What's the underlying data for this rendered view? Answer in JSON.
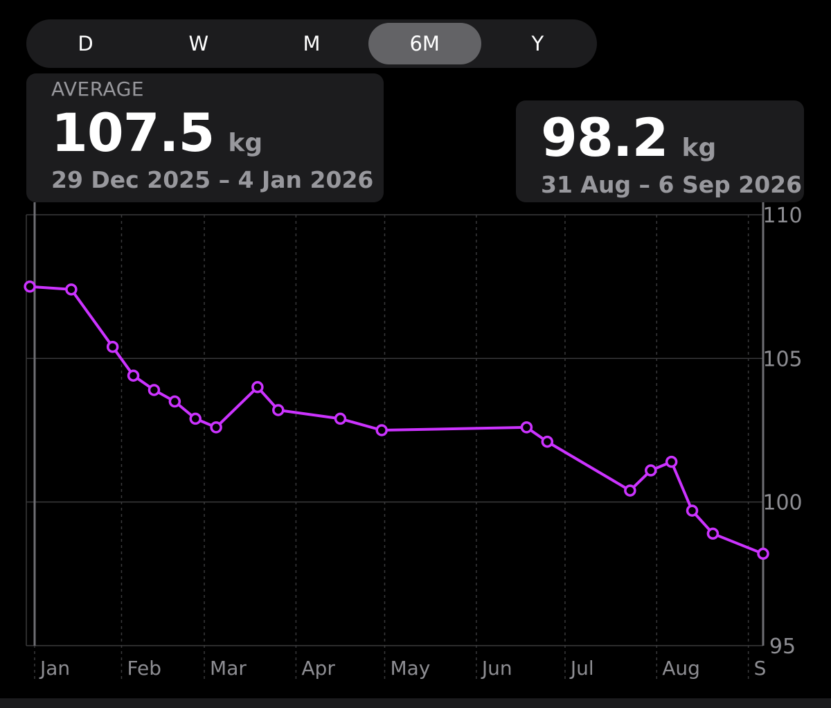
{
  "segmented_control": {
    "options": [
      "D",
      "W",
      "M",
      "6M",
      "Y"
    ],
    "selected": "6M"
  },
  "average": {
    "label": "AVERAGE",
    "value": "107.5",
    "unit": "kg",
    "range": "29 Dec 2025 – 4 Jan 2026"
  },
  "selected_point": {
    "value": "98.2",
    "unit": "kg",
    "range": "31 Aug – 6 Sep 2026"
  },
  "colors": {
    "series": "#cc33ff",
    "grid": "#3a3a3c",
    "axis_text": "#8e8e93",
    "selection_line": "#6e6e73"
  },
  "chart_data": {
    "type": "line",
    "ylim": [
      95,
      110
    ],
    "yticks": [
      95,
      100,
      105,
      110
    ],
    "x_range": [
      "2026-01-01",
      "2026-09-06"
    ],
    "month_labels": [
      {
        "label": "Jan",
        "date": "2026-01-01"
      },
      {
        "label": "Feb",
        "date": "2026-02-01"
      },
      {
        "label": "Mar",
        "date": "2026-03-01"
      },
      {
        "label": "Apr",
        "date": "2026-04-01"
      },
      {
        "label": "May",
        "date": "2026-05-01"
      },
      {
        "label": "Jun",
        "date": "2026-06-01"
      },
      {
        "label": "Jul",
        "date": "2026-07-01"
      },
      {
        "label": "Aug",
        "date": "2026-08-01"
      },
      {
        "label": "S",
        "date": "2026-09-01"
      }
    ],
    "series": [
      {
        "unit": "kg",
        "points": [
          {
            "date": "2026-01-01",
            "value": 107.5
          },
          {
            "date": "2026-01-15",
            "value": 107.4
          },
          {
            "date": "2026-01-29",
            "value": 105.4
          },
          {
            "date": "2026-02-05",
            "value": 104.4
          },
          {
            "date": "2026-02-12",
            "value": 103.9
          },
          {
            "date": "2026-02-19",
            "value": 103.5
          },
          {
            "date": "2026-02-26",
            "value": 102.9
          },
          {
            "date": "2026-03-05",
            "value": 102.6
          },
          {
            "date": "2026-03-19",
            "value": 104.0
          },
          {
            "date": "2026-03-26",
            "value": 103.2
          },
          {
            "date": "2026-04-16",
            "value": 102.9
          },
          {
            "date": "2026-04-30",
            "value": 102.5
          },
          {
            "date": "2026-06-18",
            "value": 102.6
          },
          {
            "date": "2026-06-25",
            "value": 102.1
          },
          {
            "date": "2026-07-23",
            "value": 100.4
          },
          {
            "date": "2026-07-30",
            "value": 101.1
          },
          {
            "date": "2026-08-06",
            "value": 101.4
          },
          {
            "date": "2026-08-13",
            "value": 99.7
          },
          {
            "date": "2026-08-20",
            "value": 98.9
          },
          {
            "date": "2026-09-06",
            "value": 98.2
          }
        ]
      }
    ],
    "selected_index": 19,
    "average_index": 0
  }
}
